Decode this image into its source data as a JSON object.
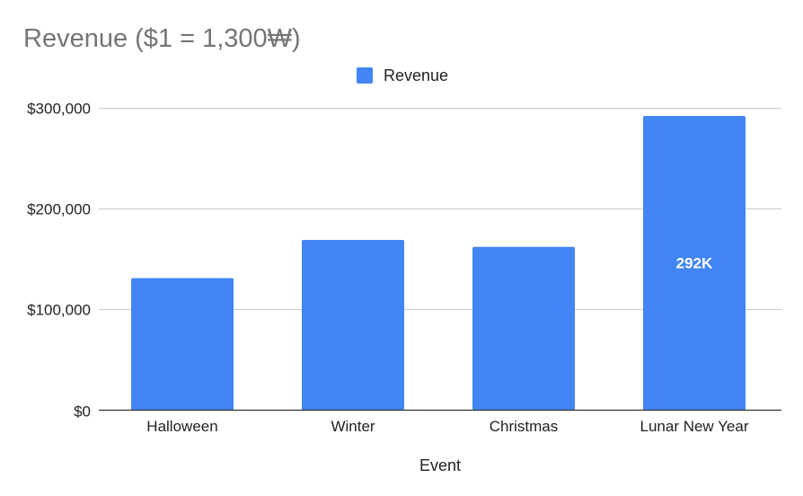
{
  "chart_data": {
    "type": "bar",
    "title": "Revenue ($1 = 1,300₩)",
    "xlabel": "Event",
    "ylabel": "",
    "categories": [
      "Halloween",
      "Winter",
      "Christmas",
      "Lunar New Year"
    ],
    "series": [
      {
        "name": "Revenue",
        "values": [
          131000,
          169000,
          162000,
          292000
        ],
        "data_labels": [
          "",
          "",
          "",
          "292K"
        ]
      }
    ],
    "ylim": [
      0,
      300000
    ],
    "yticks": [
      0,
      100000,
      200000,
      300000
    ],
    "ytick_labels": [
      "$0",
      "$100,000",
      "$200,000",
      "$300,000"
    ],
    "grid": true,
    "legend_position": "top-center",
    "colors": {
      "bar": "#4285f4",
      "grid": "#cccccc",
      "axis": "#333333",
      "title": "#757575",
      "text": "#222222",
      "data_label": "#ffffff"
    }
  }
}
